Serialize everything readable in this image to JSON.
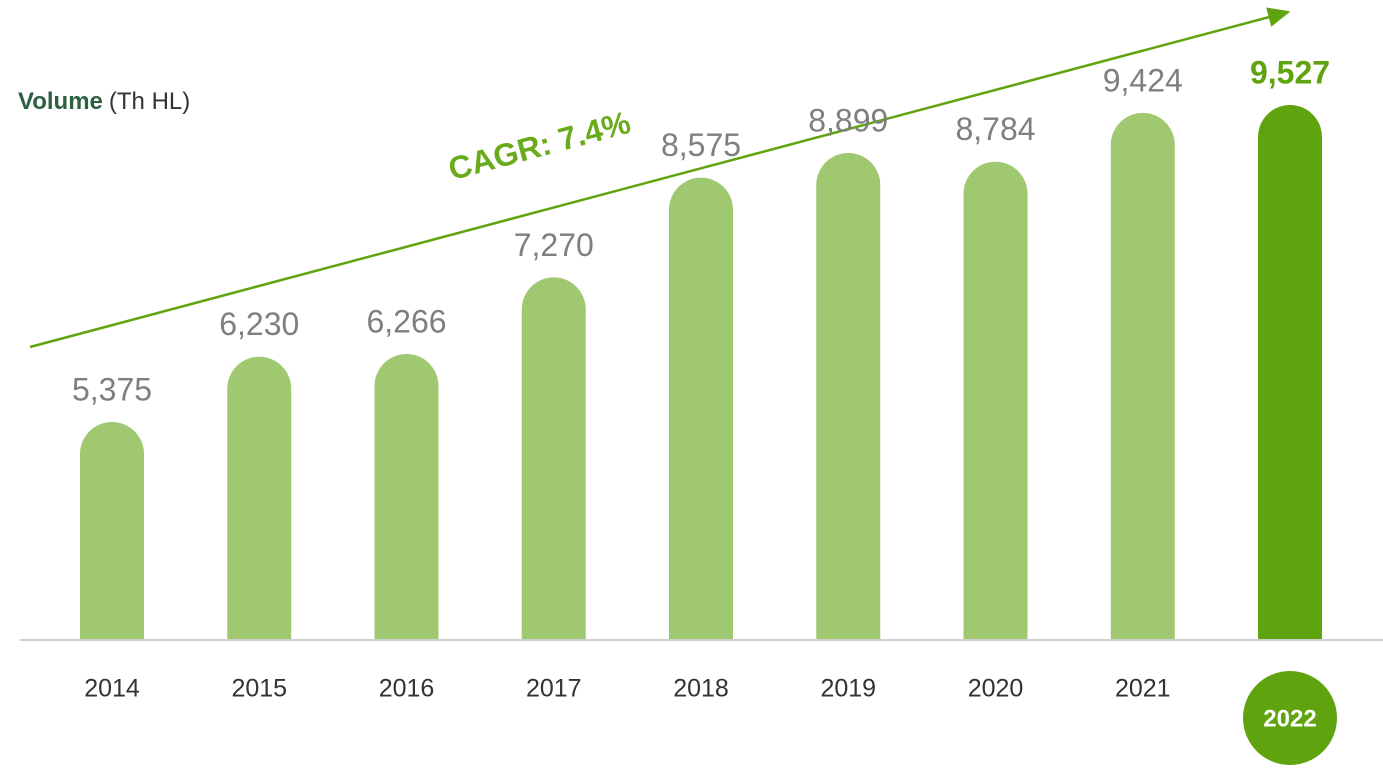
{
  "chart_data": {
    "type": "bar",
    "title": "Volume",
    "unit_label": "(Th HL)",
    "annotation": "CAGR: 7.4%",
    "categories": [
      "2014",
      "2015",
      "2016",
      "2017",
      "2018",
      "2019",
      "2020",
      "2021",
      "2022"
    ],
    "values": [
      5375,
      6230,
      6266,
      7270,
      8575,
      8899,
      8784,
      9424,
      9527
    ],
    "value_labels": [
      "5,375",
      "6,230",
      "6,266",
      "7,270",
      "8,575",
      "8,899",
      "8,784",
      "9,424",
      "9,527"
    ],
    "colors": [
      "#a0c870",
      "#a0c870",
      "#a0c870",
      "#a0c870",
      "#a0c870",
      "#a0c870",
      "#a0c870",
      "#a0c870",
      "#5fa30e"
    ]
  }
}
